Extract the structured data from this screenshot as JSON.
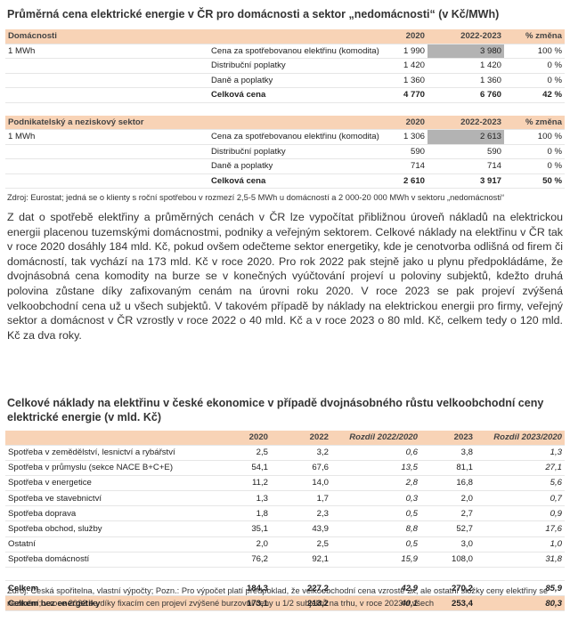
{
  "title1": "Průměrná cena elektrické energie v ČR pro domácnosti a sektor „nedomácnosti“ (v Kč/MWh)",
  "table1": {
    "sections": [
      {
        "header": [
          "Domácnosti",
          "2020",
          "2022-2023",
          "% změna"
        ],
        "rows": [
          {
            "label": "1 MWh",
            "item": "Cena za spotřebovanou elektřinu (komodita)",
            "values": [
              "1 990",
              "3 980",
              "100 %"
            ]
          },
          {
            "item": "Distribuční poplatky",
            "values": [
              "1 420",
              "1 420",
              "0 %"
            ]
          },
          {
            "item": "Daně a poplatky",
            "values": [
              "1 360",
              "1 360",
              "0 %"
            ]
          },
          {
            "item": "Celková cena",
            "values": [
              "4 770",
              "6 760",
              "42 %"
            ]
          }
        ]
      },
      {
        "header": [
          "Podnikatelský a neziskový sektor",
          "2020",
          "2022-2023",
          "% změna"
        ],
        "rows": [
          {
            "label": "1 MWh",
            "item": "Cena za spotřebovanou elektřinu (komodita)",
            "values": [
              "1 306",
              "2 613",
              "100 %"
            ]
          },
          {
            "item": "Distribuční poplatky",
            "values": [
              "590",
              "590",
              "0 %"
            ]
          },
          {
            "item": "Daně a poplatky",
            "values": [
              "714",
              "714",
              "0 %"
            ]
          },
          {
            "item": "Celková cena",
            "values": [
              "2 610",
              "3 917",
              "50 %"
            ]
          }
        ]
      }
    ],
    "source": "Zdroj: Eurostat; jedná se o klienty s roční spotřebou v rozmezí 2,5-5 MWh u domácností a 2 000-20 000 MWh v sektoru „nedomácnosti“"
  },
  "paragraph": "Z dat o spotřebě elektřiny a průměrných cenách v ČR lze vypočítat přibližnou úroveň nákladů na elektrickou energii placenou tuzemskými domácnostmi, podniky a veřejným sektorem. Celkové náklady na elektřinu v ČR tak v roce 2020 dosáhly 184 mld. Kč, pokud ovšem odečteme sektor energetiky, kde je cenotvorba odlišná od firem či domácností, tak vychází na 173 mld. Kč v roce 2020. Pro rok 2022 pak stejně jako u plynu předpokládáme, že dvojnásobná cena komodity na burze se v konečných vyúčtování projeví u poloviny subjektů, kdežto druhá polovina zůstane díky zafixovaným cenám na úrovni roku 2020. V roce 2023 se pak projeví zvýšená velkoobchodní cena už u všech subjektů. V takovém případě by náklady na elektrickou energii pro firmy, veřejný sektor a domácnost v ČR vzrostly v roce 2022 o 40 mld. Kč a v roce 2023 o 80 mld. Kč, celkem tedy o 120 mld. Kč za dva roky.",
  "title2": "Celkové náklady na elektřinu v české ekonomice v případě dvojnásobného růstu velkoobchodní ceny elektrické energie (v mld. Kč)",
  "table2": {
    "header": [
      "2020",
      "2022",
      "Rozdíl 2022/2020",
      "2023",
      "Rozdíl 2023/2020"
    ],
    "rows": [
      {
        "label": "Spotřeba v zemědělství, lesnictví a rybářství",
        "values": [
          "2,5",
          "3,2",
          "0,6",
          "3,8",
          "1,3"
        ]
      },
      {
        "label": "Spotřeba v průmyslu (sekce NACE B+C+E)",
        "values": [
          "54,1",
          "67,6",
          "13,5",
          "81,1",
          "27,1"
        ]
      },
      {
        "label": "Spotřeba v energetice",
        "values": [
          "11,2",
          "14,0",
          "2,8",
          "16,8",
          "5,6"
        ]
      },
      {
        "label": "Spotřeba ve stavebnictví",
        "values": [
          "1,3",
          "1,7",
          "0,3",
          "2,0",
          "0,7"
        ]
      },
      {
        "label": "Spotřeba doprava",
        "values": [
          "1,8",
          "2,3",
          "0,5",
          "2,7",
          "0,9"
        ]
      },
      {
        "label": "Spotřeba obchod, služby",
        "values": [
          "35,1",
          "43,9",
          "8,8",
          "52,7",
          "17,6"
        ]
      },
      {
        "label": "Ostatní",
        "values": [
          "2,0",
          "2,5",
          "0,5",
          "3,0",
          "1,0"
        ]
      },
      {
        "label": "Spotřeba domácností",
        "values": [
          "76,2",
          "92,1",
          "15,9",
          "108,0",
          "31,8"
        ]
      }
    ],
    "totals": [
      {
        "label": "Celkem",
        "values": [
          "184,3",
          "227,2",
          "42,9",
          "270,2",
          "85,9"
        ]
      },
      {
        "label": "Celkem bez energetiky",
        "values": [
          "173,1",
          "213,2",
          "40,1",
          "253,4",
          "80,3"
        ]
      }
    ],
    "source": "Zdroj: Česká spořitelna, vlastní výpočty; Pozn.: Pro výpočet platí předpoklad, že velkoobchodní cena vzroste 2x, ale ostatní složky ceny elektřiny se nezmění; v roce 2022 se díky fixacím cen projeví zvýšené burzovní ceny u 1/2 subjektů na trhu, v roce 2023 u všech"
  }
}
